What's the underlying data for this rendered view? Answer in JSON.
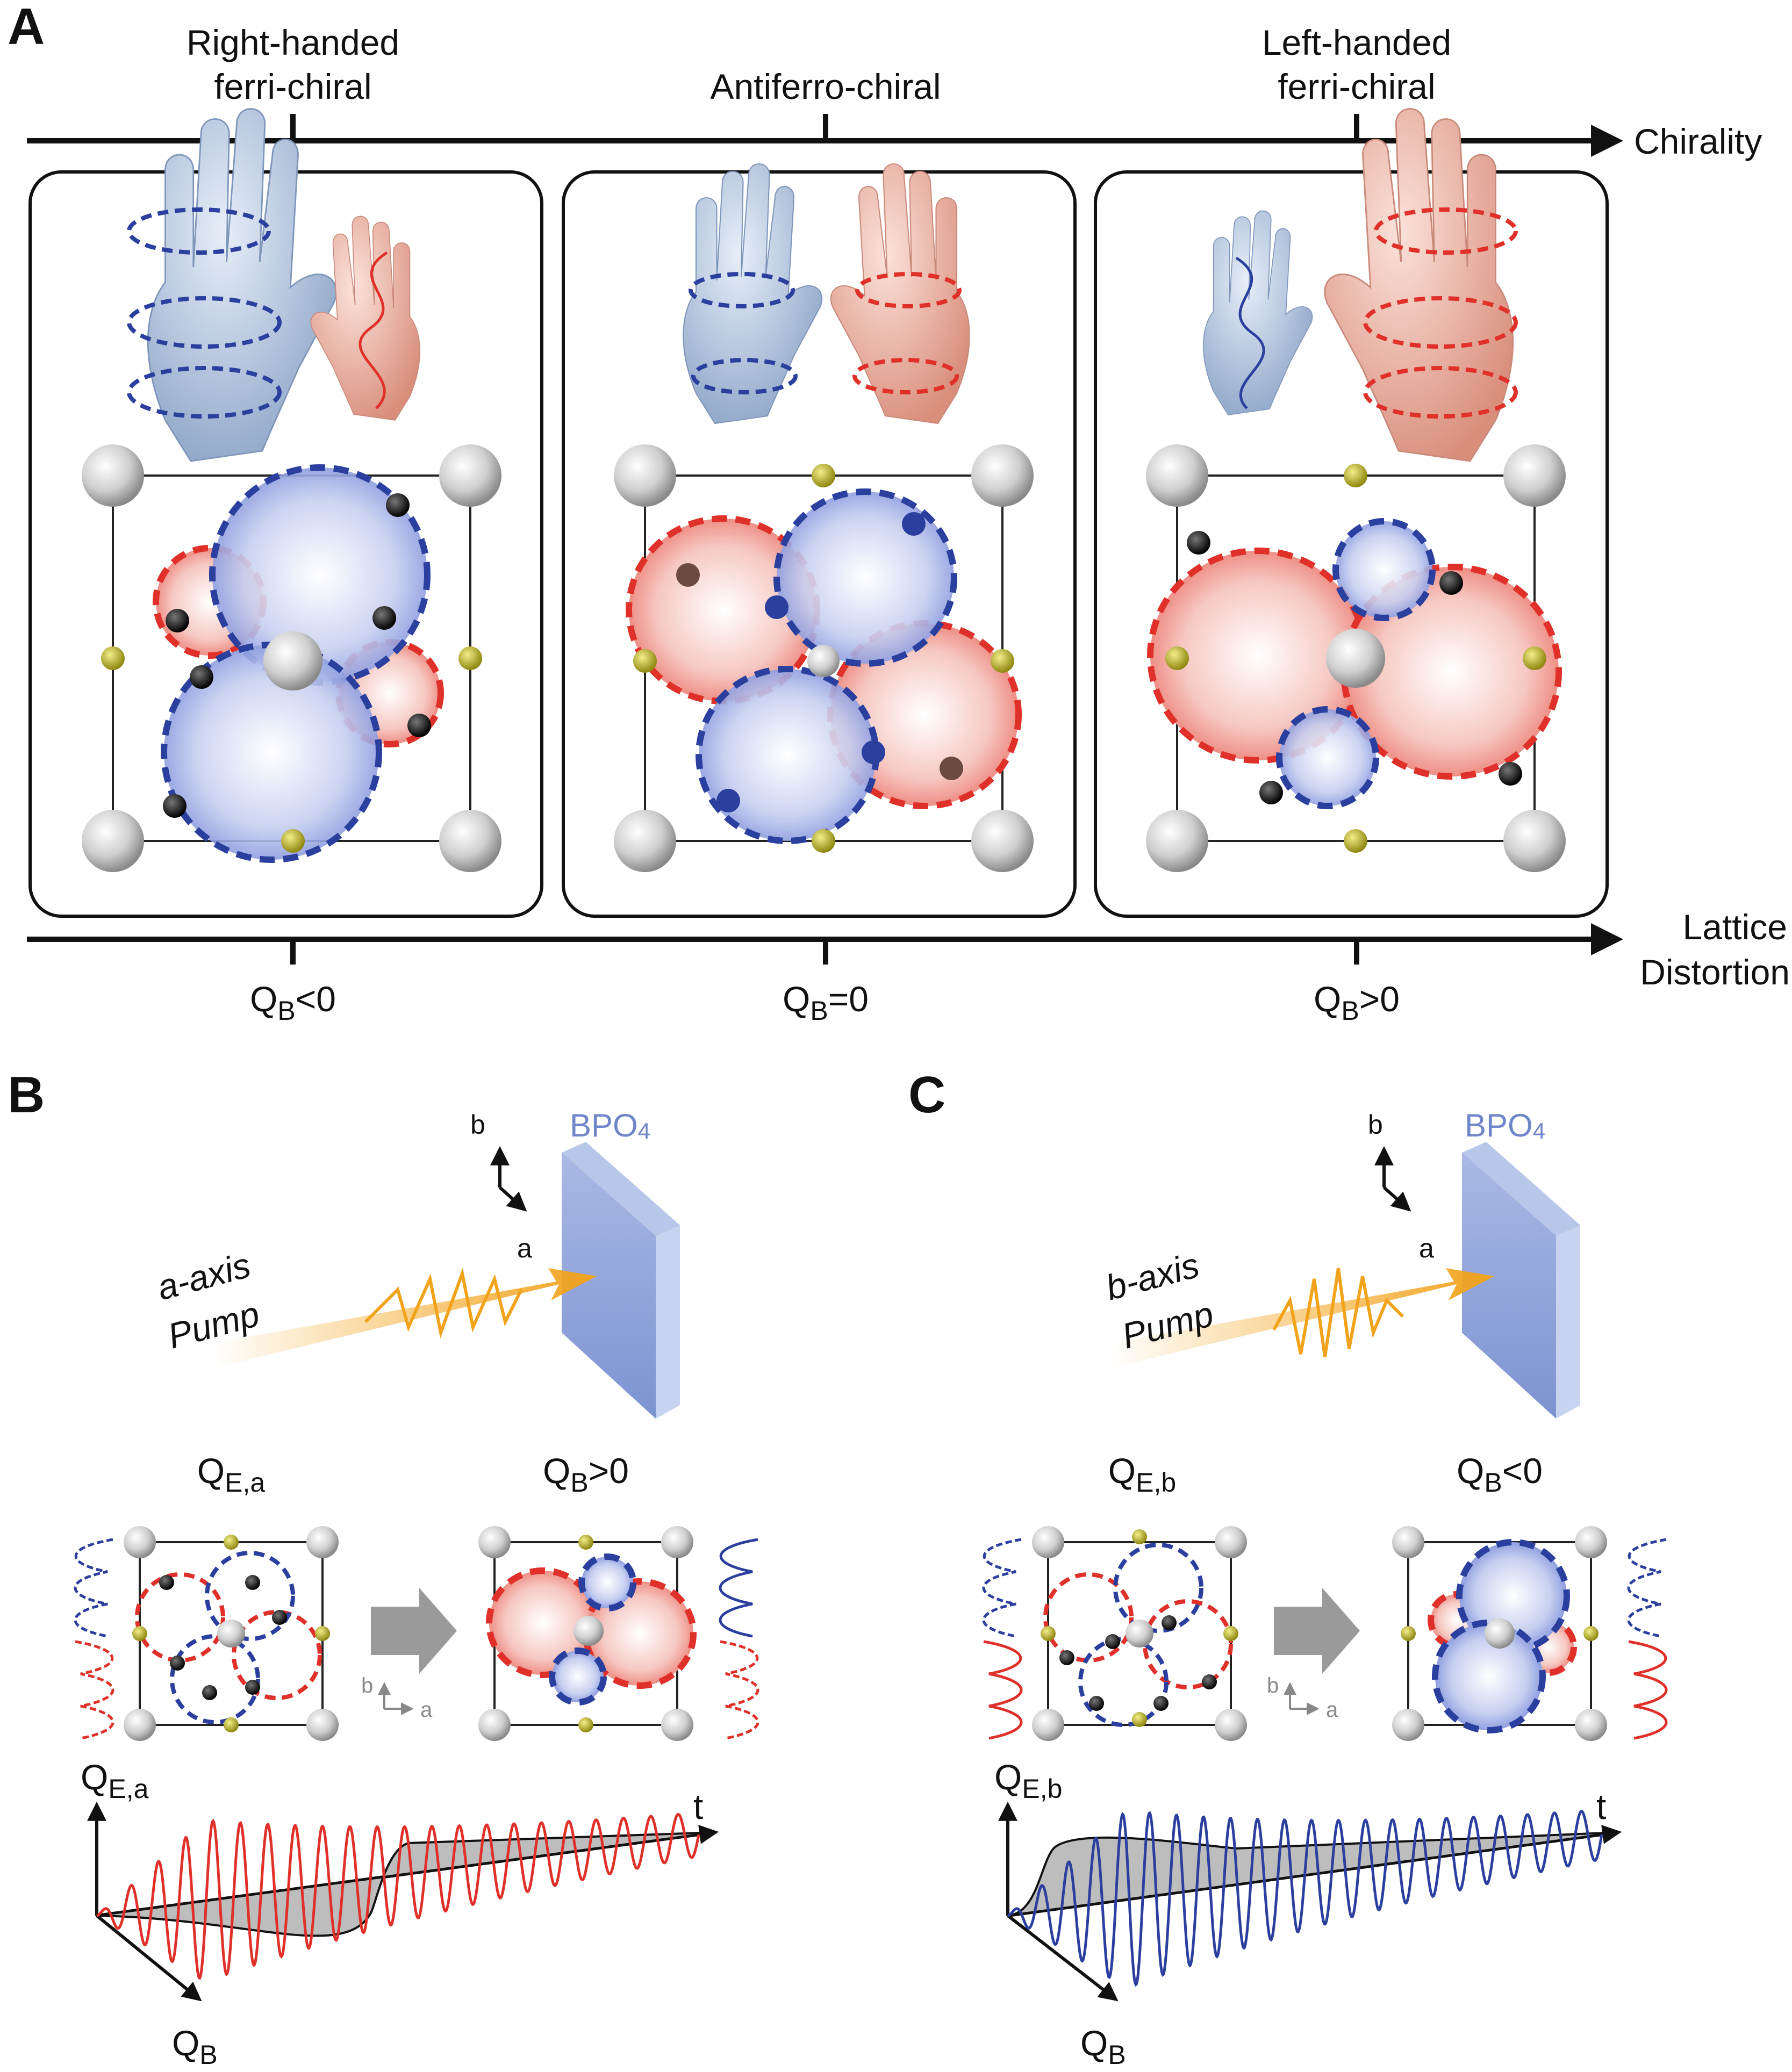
{
  "panel_a": {
    "letter": "A",
    "chirality_axis_label": "Chirality",
    "lattice_axis_label_line1": "Lattice",
    "lattice_axis_label_line2": "Distortion",
    "states": [
      {
        "title_line1": "Right-handed",
        "title_line2": "ferri-chiral",
        "q_main": "Q",
        "q_sub": "B",
        "q_rel": "<0"
      },
      {
        "title_line1": "Antiferro-chiral",
        "title_line2": "",
        "q_main": "Q",
        "q_sub": "B",
        "q_rel": "=0"
      },
      {
        "title_line1": "Left-handed",
        "title_line2": "ferri-chiral",
        "q_main": "Q",
        "q_sub": "B",
        "q_rel": ">0"
      }
    ]
  },
  "panel_b": {
    "letter": "B",
    "crystal_label": "BPO",
    "crystal_sub": "4",
    "axis_b": "b",
    "axis_a": "a",
    "pump_line1": "a-axis",
    "pump_line2": "Pump",
    "left_title_main": "Q",
    "left_title_sub": "E,a",
    "right_title_main": "Q",
    "right_title_sub": "B",
    "right_title_rel": ">0",
    "inset_b": "b",
    "inset_a": "a",
    "plot_y_main": "Q",
    "plot_y_sub": "E,a",
    "plot_t": "t",
    "plot_q_main": "Q",
    "plot_q_sub": "B"
  },
  "panel_c": {
    "letter": "C",
    "crystal_label": "BPO",
    "crystal_sub": "4",
    "axis_b": "b",
    "axis_a": "a",
    "pump_line1": "b-axis",
    "pump_line2": "Pump",
    "left_title_main": "Q",
    "left_title_sub": "E,b",
    "right_title_main": "Q",
    "right_title_sub": "B",
    "right_title_rel": "<0",
    "inset_b": "b",
    "inset_a": "a",
    "plot_y_main": "Q",
    "plot_y_sub": "E,b",
    "plot_t": "t",
    "plot_q_main": "Q",
    "plot_q_sub": "B"
  },
  "colors": {
    "blue_domain": "#2b3f9e",
    "red_domain": "#e0302a",
    "pump": "#f2a31b",
    "crystal": "#8ea3d8",
    "yellow_atom": "#b7ad1e",
    "grey_atom": "#c8c8c8",
    "hand_blue": "#a9bcd8",
    "hand_red": "#e6a99a"
  }
}
